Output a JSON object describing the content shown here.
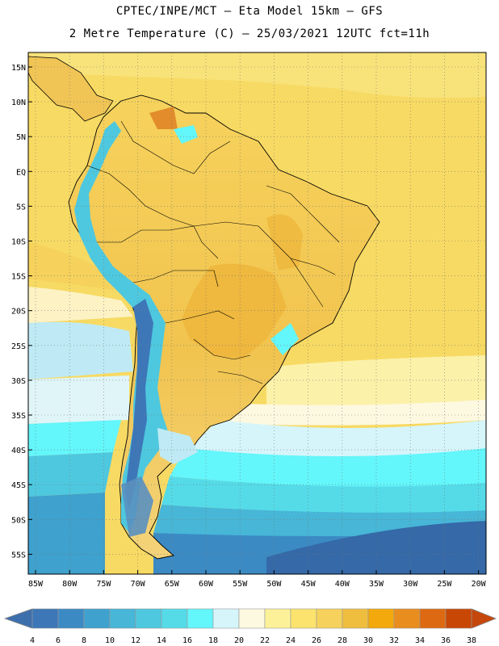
{
  "header": {
    "line1": "CPTEC/INPE/MCT –  Eta Model 15km – GFS",
    "line2": "2 Metre Temperature (C) – 25/03/2021 12UTC fct=11h"
  },
  "lat_labels": [
    "15N",
    "10N",
    "5N",
    "EQ",
    "5S",
    "10S",
    "15S",
    "20S",
    "25S",
    "30S",
    "35S",
    "40S",
    "45S",
    "50S",
    "55S"
  ],
  "lon_labels": [
    "85W",
    "80W",
    "75W",
    "70W",
    "65W",
    "60W",
    "55W",
    "50W",
    "45W",
    "40W",
    "35W",
    "30W",
    "25W",
    "20W"
  ],
  "colorbar": {
    "values": [
      "4",
      "6",
      "8",
      "10",
      "12",
      "14",
      "16",
      "18",
      "20",
      "22",
      "24",
      "26",
      "28",
      "30",
      "32",
      "34",
      "36",
      "38"
    ],
    "colors": [
      "#3d77b8",
      "#3b8ac4",
      "#3fa1cd",
      "#47b6d7",
      "#4ec8df",
      "#55dbe8",
      "#63f6fb",
      "#d6f5fb",
      "#fdf8e0",
      "#fcf199",
      "#fbe36d",
      "#f6d25c",
      "#f0be3f",
      "#f3a90b",
      "#e98d1e",
      "#dd6a12",
      "#c84705"
    ],
    "low_color": "#3e6fad",
    "high_color": "#c5470c"
  }
}
